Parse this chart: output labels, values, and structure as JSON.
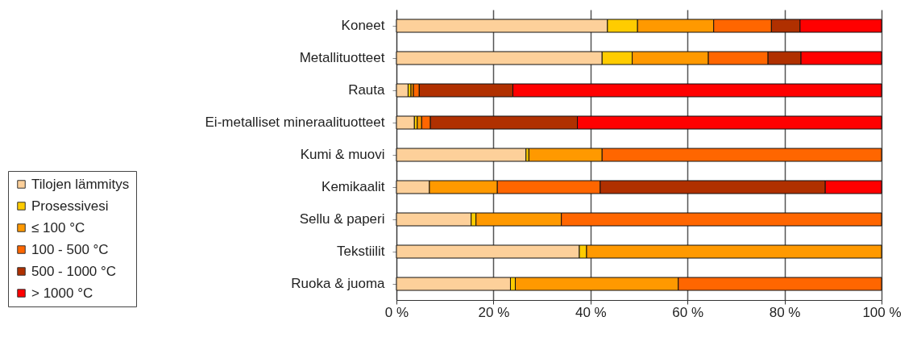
{
  "chart_data": {
    "type": "bar",
    "orientation": "horizontal",
    "stacked": true,
    "categories": [
      "Koneet",
      "Metallituotteet",
      "Rauta",
      "Ei-metalliset mineraalituotteet",
      "Kumi & muovi",
      "Kemikaalit",
      "Sellu & paperi",
      "Tekstiilit",
      "Ruoka & juoma"
    ],
    "series": [
      {
        "name": "Tilojen lämmitys",
        "color": "#fdd09a",
        "values": [
          43.5,
          42.4,
          2.4,
          3.7,
          26.7,
          6.8,
          15.4,
          37.7,
          23.5
        ]
      },
      {
        "name": "Prosessivesi",
        "color": "#ffcc00",
        "values": [
          6.2,
          6.2,
          0.6,
          0.6,
          0.6,
          0,
          1.0,
          1.5,
          1.0
        ]
      },
      {
        "name": "≤ 100 °C",
        "color": "#ff9900",
        "values": [
          15.7,
          15.7,
          0.5,
          0.9,
          15.1,
          14.0,
          17.6,
          60.8,
          33.6
        ]
      },
      {
        "name": "100 - 500 °C",
        "color": "#ff6600",
        "values": [
          11.9,
          12.3,
          1.2,
          1.8,
          57.6,
          21.2,
          66.0,
          0,
          41.9
        ]
      },
      {
        "name": "500 - 1000 °C",
        "color": "#b03000",
        "values": [
          5.9,
          6.8,
          19.3,
          30.3,
          0,
          46.4,
          0,
          0,
          0
        ]
      },
      {
        "name": "> 1000 °C",
        "color": "#ff0000",
        "values": [
          16.8,
          16.6,
          76.0,
          62.7,
          0,
          11.6,
          0,
          0,
          0
        ]
      }
    ],
    "xlim": [
      0,
      100
    ],
    "xticks": [
      {
        "value": 0,
        "label": "0 %"
      },
      {
        "value": 20,
        "label": "20 %"
      },
      {
        "value": 40,
        "label": "40 %"
      },
      {
        "value": 60,
        "label": "60 %"
      },
      {
        "value": 80,
        "label": "80 %"
      },
      {
        "value": 100,
        "label": "100 %"
      }
    ],
    "grid": "x",
    "legend": "left"
  }
}
